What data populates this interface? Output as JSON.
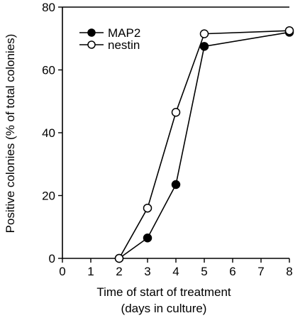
{
  "chart_data": {
    "type": "line",
    "xlabel_lines": [
      "Time of start of treatment",
      "(days in culture)"
    ],
    "ylabel": "Positive colonies (% of total colonies)",
    "xlim": [
      0,
      8
    ],
    "ylim": [
      0,
      80
    ],
    "x_ticks": [
      "0",
      "1",
      "2",
      "3",
      "4",
      "5",
      "6",
      "7",
      "8"
    ],
    "y_ticks": [
      "0",
      "20",
      "40",
      "60",
      "80"
    ],
    "grid": false,
    "legend_position": "top-left",
    "series": [
      {
        "name": "MAP2",
        "marker": "filled-circle",
        "color": "#000000",
        "x": [
          2,
          3,
          4,
          5,
          8
        ],
        "y": [
          0,
          6.5,
          23.5,
          67.5,
          72
        ]
      },
      {
        "name": "nestin",
        "marker": "open-circle",
        "color": "#000000",
        "x": [
          2,
          3,
          4,
          5,
          8
        ],
        "y": [
          0,
          16,
          46.5,
          71.5,
          72.5
        ]
      }
    ]
  }
}
